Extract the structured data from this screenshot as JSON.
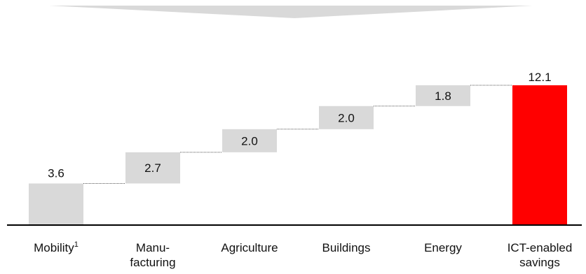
{
  "chart_data": {
    "type": "bar",
    "subtype": "waterfall",
    "categories": [
      {
        "label": "Mobility",
        "superscript": "1"
      },
      {
        "label": "Manu-\nfacturing"
      },
      {
        "label": "Agriculture"
      },
      {
        "label": "Buildings"
      },
      {
        "label": "Energy"
      },
      {
        "label": "ICT-enabled\nsavings"
      }
    ],
    "values": [
      3.6,
      2.7,
      2.0,
      2.0,
      1.8,
      12.1
    ],
    "value_labels": [
      "3.6",
      "2.7",
      "2.0",
      "2.0",
      "1.8",
      "12.1"
    ],
    "total_index": 5,
    "ylim": [
      0,
      12.4
    ],
    "colors": {
      "increment": "#d9d9d9",
      "total": "#ff0000",
      "connector": "#555555",
      "axis": "#000000",
      "top_band": "#d9d9d9"
    },
    "grid": false
  }
}
